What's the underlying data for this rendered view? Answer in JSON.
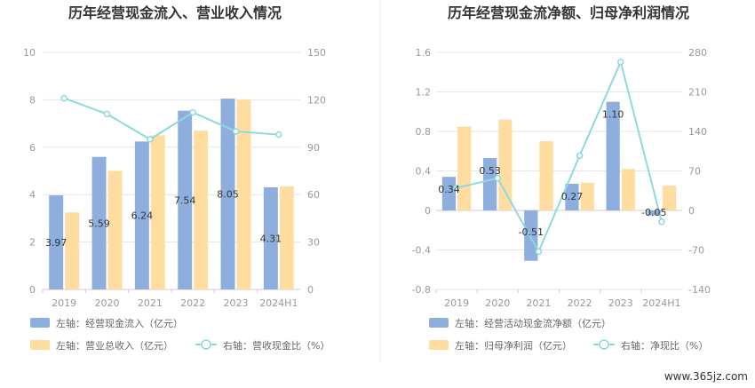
{
  "colors": {
    "bar_left": "#8eaedd",
    "bar_right": "#ffdca0",
    "line": "#8fd9dc",
    "grid": "#e6e6e6",
    "divider": "#e8e8e8"
  },
  "watermark": "www.365jz.com",
  "chart_data": [
    {
      "type": "bar",
      "title": "历年经营现金流入、营业收入情况",
      "categories": [
        "2019",
        "2020",
        "2021",
        "2022",
        "2023",
        "2024H1"
      ],
      "left_axis": {
        "ylim": [
          0,
          10
        ],
        "ticks": [
          "0",
          "2",
          "4",
          "6",
          "8",
          "10"
        ]
      },
      "right_axis": {
        "ylim": [
          0,
          150
        ],
        "ticks": [
          "0",
          "30",
          "60",
          "90",
          "120",
          "150"
        ]
      },
      "series": [
        {
          "name": "左轴：经营现金流入（亿元）",
          "axis": "left",
          "kind": "bar",
          "values": [
            3.97,
            5.59,
            6.24,
            7.54,
            8.05,
            4.31
          ],
          "labels": [
            "3.97",
            "5.59",
            "6.24",
            "7.54",
            "8.05",
            "4.31"
          ]
        },
        {
          "name": "左轴：营业总收入（亿元）",
          "axis": "left",
          "kind": "bar",
          "values": [
            3.25,
            5.0,
            6.5,
            6.7,
            8.0,
            4.35
          ]
        },
        {
          "name": "右轴：营收现金比（%）",
          "axis": "right",
          "kind": "line",
          "values": [
            121,
            111,
            95,
            112,
            100,
            98
          ]
        }
      ],
      "legend_position": "bottom",
      "grid": true
    },
    {
      "type": "bar",
      "title": "历年经营现金流净额、归母净利润情况",
      "categories": [
        "2019",
        "2020",
        "2021",
        "2022",
        "2023",
        "2024H1"
      ],
      "left_axis": {
        "ylim": [
          -0.8,
          1.6
        ],
        "ticks": [
          "-0.8",
          "-0.4",
          "0",
          "0.4",
          "0.8",
          "1.2",
          "1.6"
        ]
      },
      "right_axis": {
        "ylim": [
          -140,
          280
        ],
        "ticks": [
          "-140",
          "-70",
          "0",
          "70",
          "140",
          "210",
          "280"
        ]
      },
      "series": [
        {
          "name": "左轴：经营活动现金流净额（亿元）",
          "axis": "left",
          "kind": "bar",
          "values": [
            0.34,
            0.53,
            -0.51,
            0.27,
            1.1,
            -0.05
          ],
          "labels": [
            "0.34",
            "0.53",
            "-0.51",
            "0.27",
            "1.10",
            "-0.05"
          ]
        },
        {
          "name": "左轴：归母净利润（亿元）",
          "axis": "left",
          "kind": "bar",
          "values": [
            0.85,
            0.92,
            0.7,
            0.28,
            0.42,
            0.25
          ]
        },
        {
          "name": "右轴：净现比（%）",
          "axis": "right",
          "kind": "line",
          "values": [
            40,
            57,
            -73,
            97,
            263,
            -20
          ]
        }
      ],
      "legend_position": "bottom",
      "grid": true
    }
  ]
}
